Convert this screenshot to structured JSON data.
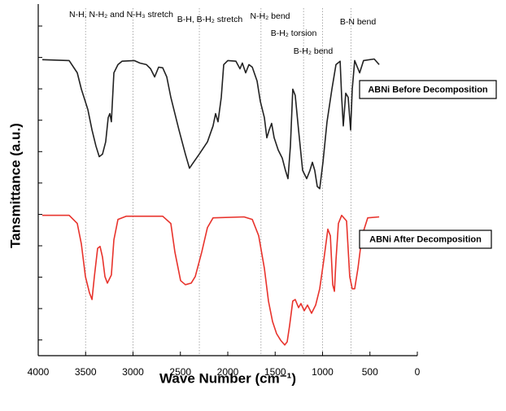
{
  "chart_data": {
    "type": "line",
    "x_label": "Wave Number (cm⁻¹)",
    "y_label": "Tansmittance (a.u.)",
    "xlim": [
      4000,
      0
    ],
    "xticks": [
      4000,
      3500,
      3000,
      2500,
      2000,
      1500,
      1000,
      500,
      0
    ],
    "ylim": [
      0,
      11.2
    ],
    "yticks": [
      0.5,
      1.5,
      2.5,
      3.5,
      4.5,
      5.5,
      6.5,
      7.5,
      8.5,
      9.5,
      10.5
    ],
    "vlines": [
      3500,
      3000,
      2300,
      1650,
      1200,
      1000,
      700
    ],
    "annotations": [
      "N-H, N-H₂ and N-H₃ stretch",
      "B-H, B-H₂ stretch",
      "N-H₂ bend",
      "B-H₂ torsion",
      "B-H₂ bend",
      "B-N bend"
    ],
    "series": [
      {
        "name": "ABNi Before Decomposition",
        "color": "#222222",
        "x": [
          3957,
          3674,
          3588,
          3545,
          3476,
          3433,
          3391,
          3356,
          3322,
          3288,
          3262,
          3245,
          3228,
          3202,
          3159,
          3116,
          2987,
          2927,
          2858,
          2815,
          2772,
          2730,
          2687,
          2644,
          2601,
          2515,
          2447,
          2404,
          2361,
          2301,
          2215,
          2155,
          2129,
          2103,
          2069,
          2043,
          2000,
          1914,
          1871,
          1846,
          1811,
          1777,
          1742,
          1691,
          1657,
          1614,
          1588,
          1563,
          1537,
          1511,
          1468,
          1425,
          1391,
          1365,
          1339,
          1314,
          1288,
          1253,
          1210,
          1167,
          1133,
          1107,
          1082,
          1056,
          1030,
          996,
          953,
          901,
          858,
          815,
          798,
          781,
          755,
          730,
          704,
          687,
          661,
          609,
          567,
          455,
          403
        ],
        "values": [
          9.43,
          9.4,
          9.01,
          8.49,
          7.84,
          7.19,
          6.68,
          6.34,
          6.42,
          6.81,
          7.58,
          7.71,
          7.45,
          9.01,
          9.27,
          9.38,
          9.4,
          9.32,
          9.27,
          9.14,
          8.88,
          9.19,
          9.17,
          8.88,
          8.23,
          7.19,
          6.42,
          5.97,
          6.16,
          6.42,
          6.81,
          7.32,
          7.71,
          7.45,
          8.23,
          9.27,
          9.4,
          9.38,
          9.14,
          9.32,
          9.01,
          9.27,
          9.19,
          8.75,
          8.1,
          7.58,
          6.94,
          7.19,
          7.4,
          6.94,
          6.55,
          6.29,
          5.9,
          5.64,
          6.68,
          8.49,
          8.29,
          7.19,
          5.9,
          5.64,
          5.9,
          6.16,
          5.9,
          5.39,
          5.32,
          6.16,
          7.45,
          8.49,
          9.27,
          9.38,
          8.23,
          7.32,
          8.36,
          8.23,
          7.19,
          8.49,
          9.4,
          9.01,
          9.4,
          9.45,
          9.27
        ]
      },
      {
        "name": "ABNi After Decomposition",
        "color": "#e8332c",
        "x": [
          3957,
          3674,
          3588,
          3545,
          3502,
          3459,
          3433,
          3408,
          3373,
          3348,
          3322,
          3296,
          3270,
          3228,
          3202,
          3159,
          3073,
          2687,
          2601,
          2558,
          2498,
          2447,
          2386,
          2343,
          2275,
          2215,
          2155,
          1828,
          1742,
          1674,
          1614,
          1571,
          1528,
          1485,
          1442,
          1399,
          1373,
          1348,
          1314,
          1288,
          1253,
          1228,
          1193,
          1159,
          1116,
          1073,
          1030,
          987,
          944,
          918,
          893,
          875,
          858,
          833,
          798,
          747,
          713,
          687,
          661,
          627,
          584,
          524,
          403
        ],
        "values": [
          4.47,
          4.47,
          4.21,
          3.56,
          2.52,
          2.0,
          1.79,
          2.52,
          3.42,
          3.48,
          3.14,
          2.52,
          2.31,
          2.57,
          3.69,
          4.34,
          4.44,
          4.44,
          4.21,
          3.3,
          2.39,
          2.26,
          2.31,
          2.52,
          3.3,
          4.08,
          4.39,
          4.42,
          4.34,
          3.82,
          2.78,
          1.74,
          1.09,
          0.7,
          0.49,
          0.34,
          0.44,
          0.96,
          1.74,
          1.79,
          1.53,
          1.66,
          1.43,
          1.61,
          1.35,
          1.61,
          2.13,
          3.04,
          4.03,
          3.82,
          2.26,
          2.05,
          3.04,
          4.21,
          4.47,
          4.29,
          2.52,
          2.13,
          2.13,
          2.78,
          3.82,
          4.39,
          4.42
        ]
      }
    ]
  }
}
